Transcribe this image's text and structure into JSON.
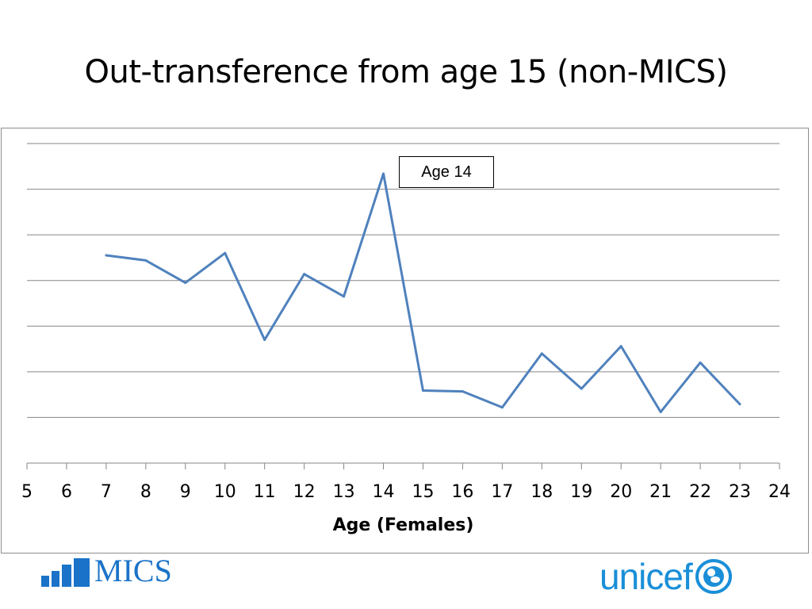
{
  "title": "Out-transference from age 15 (non-MICS)",
  "annotation": "Age 14",
  "logos": {
    "left": "MICS",
    "right": "unicef"
  },
  "colors": {
    "series": "#4f81bd",
    "grid": "#868686",
    "logo_blue": "#1a73c8"
  },
  "chart_data": {
    "type": "line",
    "xlabel": "Age (Females)",
    "ylabel": "",
    "xlim": [
      5,
      24
    ],
    "x_ticks": [
      5,
      6,
      7,
      8,
      9,
      10,
      11,
      12,
      13,
      14,
      15,
      16,
      17,
      18,
      19,
      20,
      21,
      22,
      23,
      24
    ],
    "ylim": [
      0,
      7
    ],
    "y_tick_labels_shown": false,
    "grid": "horizontal",
    "series": [
      {
        "x": [
          7,
          8,
          9,
          10,
          11,
          12,
          13,
          14,
          15,
          16,
          17,
          18,
          19,
          20,
          21,
          22,
          23
        ],
        "values": [
          4.55,
          4.44,
          3.95,
          4.6,
          2.7,
          4.14,
          3.65,
          6.34,
          1.59,
          1.57,
          1.22,
          2.4,
          1.63,
          2.56,
          1.12,
          2.2,
          1.29
        ]
      }
    ]
  }
}
